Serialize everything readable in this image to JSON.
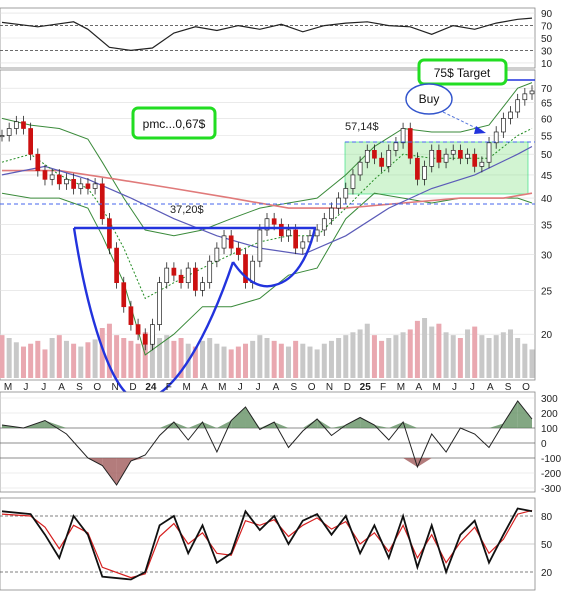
{
  "chart_data": {
    "type": "candlestick",
    "x_labels": [
      "M",
      "J",
      "J",
      "A",
      "S",
      "O",
      "N",
      "D",
      "24",
      "F",
      "M",
      "A",
      "M",
      "J",
      "J",
      "A",
      "S",
      "O",
      "N",
      "D",
      "25",
      "F",
      "M",
      "A",
      "M",
      "J",
      "J",
      "A",
      "S",
      "O"
    ],
    "y_ticks": [
      20,
      25,
      30,
      35,
      40,
      45,
      50,
      55,
      60,
      65,
      70
    ],
    "ylim": [
      16,
      76
    ],
    "scale": "log",
    "price": [
      [
        0,
        55
      ],
      [
        1,
        57
      ],
      [
        2,
        59
      ],
      [
        3,
        57
      ],
      [
        4,
        50
      ],
      [
        5,
        46
      ],
      [
        6,
        44
      ],
      [
        7,
        45
      ],
      [
        8,
        43
      ],
      [
        9,
        44
      ],
      [
        10,
        42
      ],
      [
        11,
        43
      ],
      [
        12,
        42
      ],
      [
        13,
        43
      ],
      [
        14,
        36
      ],
      [
        15,
        31
      ],
      [
        16,
        26
      ],
      [
        17,
        23
      ],
      [
        18,
        21
      ],
      [
        19,
        20
      ],
      [
        20,
        19
      ],
      [
        21,
        21
      ],
      [
        22,
        26
      ],
      [
        23,
        28
      ],
      [
        24,
        27
      ],
      [
        25,
        26
      ],
      [
        26,
        28
      ],
      [
        27,
        25
      ],
      [
        28,
        26
      ],
      [
        29,
        29
      ],
      [
        30,
        31
      ],
      [
        31,
        33
      ],
      [
        32,
        31
      ],
      [
        33,
        30
      ],
      [
        34,
        26
      ],
      [
        35,
        29
      ],
      [
        36,
        34
      ],
      [
        37,
        36
      ],
      [
        38,
        35
      ],
      [
        39,
        33
      ],
      [
        40,
        34
      ],
      [
        41,
        31
      ],
      [
        42,
        32
      ],
      [
        43,
        33
      ],
      [
        44,
        34
      ],
      [
        45,
        36
      ],
      [
        46,
        38
      ],
      [
        47,
        40
      ],
      [
        48,
        42
      ],
      [
        49,
        45
      ],
      [
        50,
        48
      ],
      [
        51,
        51
      ],
      [
        52,
        49
      ],
      [
        53,
        47
      ],
      [
        54,
        51
      ],
      [
        55,
        53
      ],
      [
        56,
        57
      ],
      [
        57,
        49
      ],
      [
        58,
        44
      ],
      [
        59,
        47
      ],
      [
        60,
        51
      ],
      [
        61,
        48
      ],
      [
        62,
        50
      ],
      [
        63,
        51
      ],
      [
        64,
        49
      ],
      [
        65,
        50
      ],
      [
        66,
        47
      ],
      [
        67,
        48
      ],
      [
        68,
        53
      ],
      [
        69,
        56
      ],
      [
        70,
        60
      ],
      [
        71,
        62
      ],
      [
        72,
        66
      ],
      [
        73,
        68
      ],
      [
        74,
        69
      ]
    ],
    "bollinger_upper": [
      [
        0,
        60
      ],
      [
        4,
        58
      ],
      [
        8,
        57
      ],
      [
        12,
        54
      ],
      [
        14,
        48
      ],
      [
        17,
        40
      ],
      [
        20,
        34
      ],
      [
        24,
        33
      ],
      [
        28,
        34
      ],
      [
        32,
        36
      ],
      [
        36,
        38
      ],
      [
        40,
        39
      ],
      [
        44,
        40
      ],
      [
        48,
        45
      ],
      [
        52,
        52
      ],
      [
        56,
        57
      ],
      [
        60,
        56
      ],
      [
        64,
        56
      ],
      [
        68,
        58
      ],
      [
        72,
        70
      ],
      [
        74,
        72
      ]
    ],
    "bollinger_lower": [
      [
        0,
        41
      ],
      [
        4,
        40
      ],
      [
        8,
        40
      ],
      [
        12,
        38
      ],
      [
        14,
        33
      ],
      [
        17,
        26
      ],
      [
        20,
        18
      ],
      [
        24,
        20
      ],
      [
        28,
        23
      ],
      [
        32,
        23
      ],
      [
        36,
        24
      ],
      [
        40,
        27
      ],
      [
        44,
        28
      ],
      [
        48,
        36
      ],
      [
        52,
        41
      ],
      [
        56,
        40
      ],
      [
        60,
        39
      ],
      [
        64,
        40
      ],
      [
        68,
        40
      ],
      [
        72,
        40
      ],
      [
        74,
        39
      ]
    ],
    "ma_short": [
      [
        0,
        48
      ],
      [
        4,
        50
      ],
      [
        8,
        45
      ],
      [
        12,
        42
      ],
      [
        14,
        38
      ],
      [
        17,
        31
      ],
      [
        20,
        24
      ],
      [
        24,
        26
      ],
      [
        28,
        28
      ],
      [
        32,
        30
      ],
      [
        36,
        32
      ],
      [
        40,
        33
      ],
      [
        44,
        33
      ],
      [
        48,
        38
      ],
      [
        52,
        44
      ],
      [
        56,
        50
      ],
      [
        60,
        49
      ],
      [
        64,
        49
      ],
      [
        68,
        49
      ],
      [
        72,
        55
      ],
      [
        74,
        57
      ]
    ],
    "ma_long": [
      [
        0,
        45
      ],
      [
        6,
        47
      ],
      [
        12,
        44
      ],
      [
        18,
        40
      ],
      [
        24,
        36
      ],
      [
        30,
        33
      ],
      [
        36,
        31
      ],
      [
        42,
        30
      ],
      [
        48,
        33
      ],
      [
        54,
        38
      ],
      [
        60,
        42
      ],
      [
        66,
        45
      ],
      [
        72,
        50
      ],
      [
        74,
        52
      ]
    ],
    "ma_200": [
      [
        0,
        46
      ],
      [
        8,
        46
      ],
      [
        16,
        44
      ],
      [
        24,
        42
      ],
      [
        32,
        40
      ],
      [
        40,
        38
      ],
      [
        48,
        38
      ],
      [
        56,
        39
      ],
      [
        64,
        40
      ],
      [
        70,
        40
      ],
      [
        74,
        41
      ]
    ],
    "volume": [
      30,
      28,
      25,
      22,
      24,
      26,
      20,
      28,
      30,
      26,
      24,
      22,
      25,
      27,
      35,
      38,
      30,
      28,
      26,
      24,
      32,
      30,
      28,
      30,
      26,
      28,
      24,
      22,
      26,
      28,
      24,
      22,
      20,
      22,
      24,
      26,
      30,
      28,
      26,
      24,
      22,
      26,
      24,
      22,
      20,
      24,
      26,
      28,
      30,
      32,
      34,
      38,
      30,
      26,
      28,
      30,
      32,
      34,
      40,
      42,
      36,
      38,
      32,
      30,
      28,
      34,
      36,
      30,
      28,
      30,
      32,
      34,
      28,
      24,
      20
    ],
    "annotations": {
      "cup_left_label": "pmc...0,67$",
      "level_label": "37,20$",
      "breakout_label": "57,14$",
      "target_label": "75$ Target",
      "buy_label": "Buy"
    },
    "rsi": {
      "y_ticks": [
        10,
        30,
        50,
        70,
        90
      ],
      "values": [
        [
          0,
          75
        ],
        [
          5,
          68
        ],
        [
          10,
          76
        ],
        [
          12,
          64
        ],
        [
          15,
          35
        ],
        [
          18,
          30
        ],
        [
          21,
          34
        ],
        [
          24,
          58
        ],
        [
          27,
          68
        ],
        [
          30,
          62
        ],
        [
          33,
          70
        ],
        [
          36,
          64
        ],
        [
          39,
          72
        ],
        [
          42,
          60
        ],
        [
          45,
          70
        ],
        [
          48,
          74
        ],
        [
          51,
          76
        ],
        [
          54,
          70
        ],
        [
          57,
          68
        ],
        [
          60,
          56
        ],
        [
          63,
          70
        ],
        [
          66,
          64
        ],
        [
          69,
          74
        ],
        [
          72,
          80
        ],
        [
          74,
          82
        ]
      ]
    },
    "cci": {
      "y_ticks": [
        300,
        200,
        100,
        0,
        -100,
        -200,
        -300
      ],
      "values": [
        [
          0,
          120
        ],
        [
          3,
          100
        ],
        [
          6,
          150
        ],
        [
          9,
          60
        ],
        [
          12,
          -100
        ],
        [
          14,
          -150
        ],
        [
          16,
          -280
        ],
        [
          18,
          -120
        ],
        [
          20,
          -80
        ],
        [
          22,
          50
        ],
        [
          24,
          140
        ],
        [
          26,
          20
        ],
        [
          28,
          140
        ],
        [
          30,
          -60
        ],
        [
          32,
          150
        ],
        [
          34,
          240
        ],
        [
          36,
          90
        ],
        [
          38,
          140
        ],
        [
          40,
          -30
        ],
        [
          42,
          80
        ],
        [
          44,
          160
        ],
        [
          46,
          50
        ],
        [
          48,
          120
        ],
        [
          50,
          170
        ],
        [
          52,
          120
        ],
        [
          54,
          20
        ],
        [
          56,
          140
        ],
        [
          58,
          -160
        ],
        [
          60,
          60
        ],
        [
          62,
          -60
        ],
        [
          64,
          100
        ],
        [
          66,
          60
        ],
        [
          68,
          -30
        ],
        [
          70,
          130
        ],
        [
          72,
          280
        ],
        [
          74,
          160
        ]
      ]
    },
    "stochastic": {
      "y_ticks": [
        20,
        50,
        80
      ],
      "k": [
        [
          0,
          85
        ],
        [
          4,
          82
        ],
        [
          6,
          60
        ],
        [
          8,
          35
        ],
        [
          10,
          80
        ],
        [
          12,
          60
        ],
        [
          14,
          15
        ],
        [
          18,
          12
        ],
        [
          20,
          20
        ],
        [
          22,
          70
        ],
        [
          24,
          80
        ],
        [
          26,
          40
        ],
        [
          28,
          70
        ],
        [
          30,
          30
        ],
        [
          32,
          40
        ],
        [
          34,
          85
        ],
        [
          36,
          65
        ],
        [
          38,
          80
        ],
        [
          40,
          50
        ],
        [
          42,
          75
        ],
        [
          44,
          82
        ],
        [
          46,
          60
        ],
        [
          48,
          80
        ],
        [
          50,
          40
        ],
        [
          52,
          70
        ],
        [
          54,
          35
        ],
        [
          56,
          80
        ],
        [
          58,
          25
        ],
        [
          60,
          70
        ],
        [
          62,
          20
        ],
        [
          64,
          60
        ],
        [
          66,
          75
        ],
        [
          68,
          30
        ],
        [
          70,
          60
        ],
        [
          72,
          88
        ],
        [
          74,
          85
        ]
      ],
      "d": [
        [
          0,
          82
        ],
        [
          4,
          80
        ],
        [
          6,
          68
        ],
        [
          8,
          45
        ],
        [
          10,
          70
        ],
        [
          12,
          62
        ],
        [
          14,
          25
        ],
        [
          18,
          14
        ],
        [
          20,
          18
        ],
        [
          22,
          58
        ],
        [
          24,
          72
        ],
        [
          26,
          50
        ],
        [
          28,
          62
        ],
        [
          30,
          40
        ],
        [
          32,
          38
        ],
        [
          34,
          75
        ],
        [
          36,
          70
        ],
        [
          38,
          76
        ],
        [
          40,
          58
        ],
        [
          42,
          70
        ],
        [
          44,
          78
        ],
        [
          46,
          66
        ],
        [
          48,
          74
        ],
        [
          50,
          50
        ],
        [
          52,
          62
        ],
        [
          54,
          42
        ],
        [
          56,
          70
        ],
        [
          58,
          35
        ],
        [
          60,
          60
        ],
        [
          62,
          30
        ],
        [
          64,
          52
        ],
        [
          66,
          68
        ],
        [
          68,
          40
        ],
        [
          70,
          55
        ],
        [
          72,
          82
        ],
        [
          74,
          86
        ]
      ]
    }
  }
}
